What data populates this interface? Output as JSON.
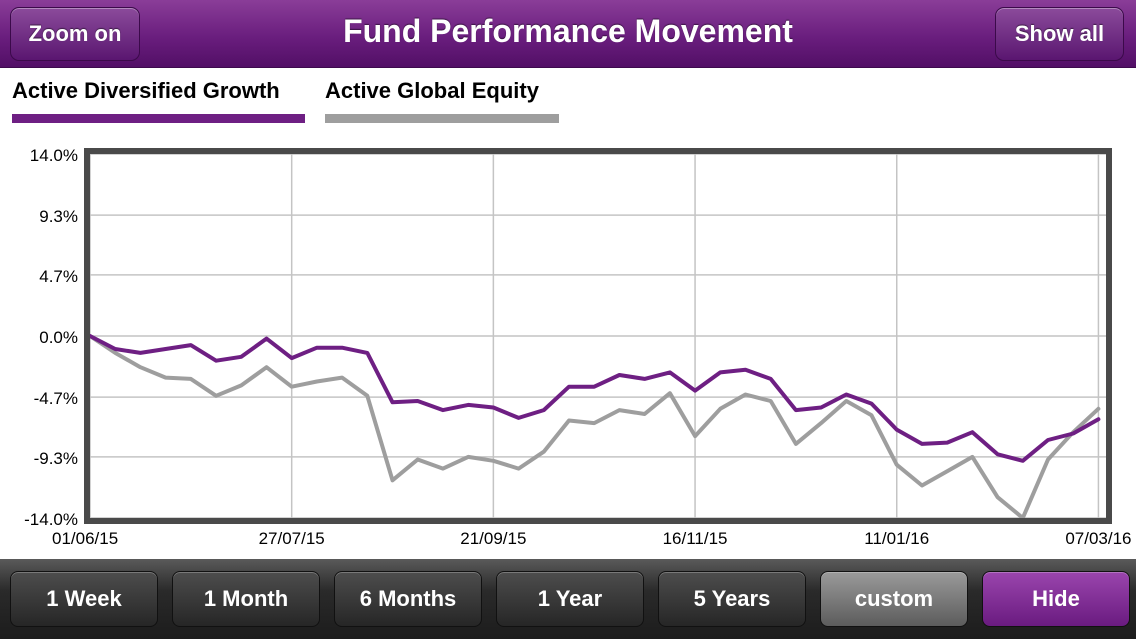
{
  "header": {
    "title": "Fund Performance Movement",
    "zoom_label": "Zoom on",
    "show_all_label": "Show all"
  },
  "legend": [
    {
      "name": "Active Diversified Growth",
      "color": "#6e1f83"
    },
    {
      "name": "Active Global Equity",
      "color": "#9e9e9e"
    }
  ],
  "periods": [
    {
      "label": "1 Week"
    },
    {
      "label": "1 Month"
    },
    {
      "label": "6 Months"
    },
    {
      "label": "1 Year"
    },
    {
      "label": "5 Years"
    },
    {
      "label": "custom",
      "selected": true
    },
    {
      "label": "Hide"
    }
  ],
  "chart_data": {
    "type": "line",
    "y_ticks": [
      "14.0%",
      "9.3%",
      "4.7%",
      "0.0%",
      "-4.7%",
      "-9.3%",
      "-14.0%"
    ],
    "y_tick_values": [
      14.0,
      9.3,
      4.7,
      0.0,
      -4.7,
      -9.3,
      -14.0
    ],
    "ylim": [
      -14.0,
      14.0
    ],
    "x_ticks": [
      "01/06/15",
      "27/07/15",
      "21/09/15",
      "16/11/15",
      "11/01/16",
      "07/03/16"
    ],
    "x_tick_weeks": [
      0,
      8,
      16,
      24,
      32,
      40
    ],
    "grid": true,
    "series": [
      {
        "name": "Active Diversified Growth",
        "color": "#6e1f83",
        "x": [
          0,
          1,
          2,
          3,
          4,
          5,
          6,
          7,
          8,
          9,
          10,
          11,
          12,
          13,
          14,
          15,
          16,
          17,
          18,
          19,
          20,
          21,
          22,
          23,
          24,
          25,
          26,
          27,
          28,
          29,
          30,
          31,
          32,
          33,
          34,
          35,
          36,
          37,
          38,
          39,
          40
        ],
        "values": [
          0.0,
          -1.0,
          -1.3,
          -1.0,
          -0.7,
          -1.9,
          -1.6,
          -0.2,
          -1.7,
          -0.9,
          -0.9,
          -1.3,
          -5.1,
          -5.0,
          -5.7,
          -5.3,
          -5.5,
          -6.3,
          -5.7,
          -3.9,
          -3.9,
          -3.0,
          -3.3,
          -2.8,
          -4.2,
          -2.8,
          -2.6,
          -3.3,
          -5.7,
          -5.5,
          -4.5,
          -5.2,
          -7.2,
          -8.3,
          -8.2,
          -7.4,
          -9.1,
          -9.6,
          -8.0,
          -7.5,
          -6.4
        ]
      },
      {
        "name": "Active Global Equity",
        "color": "#9e9e9e",
        "x": [
          0,
          1,
          2,
          3,
          4,
          5,
          6,
          7,
          8,
          9,
          10,
          11,
          12,
          13,
          14,
          15,
          16,
          17,
          18,
          19,
          20,
          21,
          22,
          23,
          24,
          25,
          26,
          27,
          28,
          29,
          30,
          31,
          32,
          33,
          34,
          35,
          36,
          37,
          38,
          39,
          40
        ],
        "values": [
          0.0,
          -1.3,
          -2.4,
          -3.2,
          -3.3,
          -4.6,
          -3.8,
          -2.4,
          -3.9,
          -3.5,
          -3.2,
          -4.6,
          -11.1,
          -9.5,
          -10.2,
          -9.3,
          -9.6,
          -10.2,
          -8.9,
          -6.5,
          -6.7,
          -5.7,
          -6.0,
          -4.4,
          -7.7,
          -5.6,
          -4.5,
          -5.0,
          -8.3,
          -6.7,
          -5.0,
          -6.1,
          -9.9,
          -11.5,
          -10.4,
          -9.3,
          -12.4,
          -14.0,
          -9.5,
          -7.4,
          -5.6
        ]
      }
    ]
  }
}
